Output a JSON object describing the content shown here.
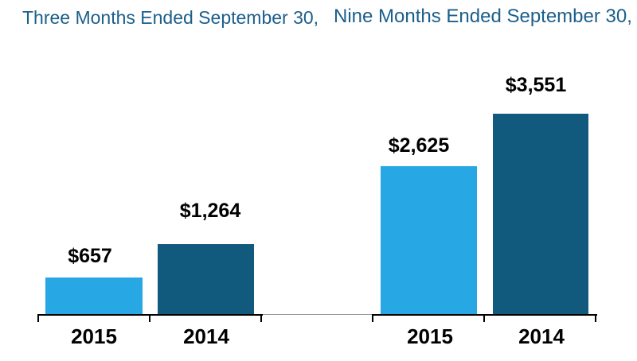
{
  "chart_data": {
    "type": "bar",
    "groups": [
      {
        "title": "Three Months Ended September 30,",
        "categories": [
          "2015",
          "2014"
        ],
        "series": [
          {
            "category": "2015",
            "value": 657,
            "label": "$657",
            "color_key": "2015"
          },
          {
            "category": "2014",
            "value": 1264,
            "label": "$1,264",
            "color_key": "2014"
          }
        ]
      },
      {
        "title": "Nine Months Ended September 30,",
        "categories": [
          "2015",
          "2014"
        ],
        "series": [
          {
            "category": "2015",
            "value": 2625,
            "label": "$2,625",
            "color_key": "2015"
          },
          {
            "category": "2014",
            "value": 3551,
            "label": "$3,551",
            "color_key": "2014"
          }
        ]
      }
    ],
    "series_colors": {
      "2015": "#27A8E4",
      "2014": "#115A7E"
    },
    "title_color": "#1B5F8B",
    "value_label_color": "#000000",
    "axis_color": "#000000",
    "ylim": [
      0,
      3600
    ],
    "grid": false,
    "legend": "none",
    "value_labels_position": "above-bars"
  }
}
